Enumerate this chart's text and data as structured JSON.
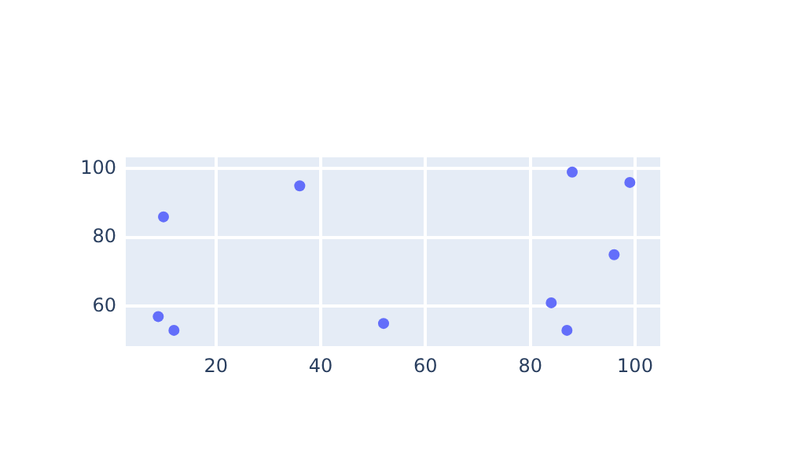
{
  "chart_data": {
    "type": "scatter",
    "x": [
      10,
      36,
      9,
      12,
      52,
      88,
      99,
      96,
      84,
      87
    ],
    "values": [
      86,
      95,
      57,
      53,
      55,
      99,
      96,
      75,
      61,
      53
    ],
    "color": "#636efa",
    "marker": "circle",
    "xlim": [
      2.8,
      104.8
    ],
    "ylim": [
      48.4,
      103.3
    ],
    "xticks": [
      20,
      40,
      60,
      80,
      100
    ],
    "yticks": [
      60,
      80,
      100
    ],
    "grid": true,
    "legend": false
  }
}
